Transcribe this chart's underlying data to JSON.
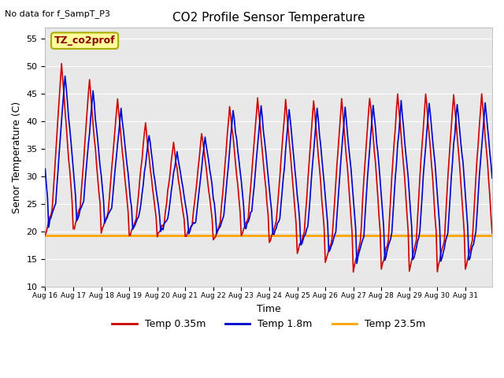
{
  "title": "CO2 Profile Sensor Temperature",
  "xlabel": "Time",
  "ylabel": "Senor Temperature (C)",
  "annotation": "No data for f_SampT_P3",
  "legend_label": "TZ_co2prof",
  "ylim": [
    10,
    57
  ],
  "yticks": [
    10,
    15,
    20,
    25,
    30,
    35,
    40,
    45,
    50,
    55
  ],
  "color_035": "#CC0000",
  "color_18": "#0000CC",
  "color_235": "#FFA500",
  "flat_temp": 19.3,
  "axes_bg": "#E8E8E8",
  "start_day": 16,
  "end_day": 31
}
